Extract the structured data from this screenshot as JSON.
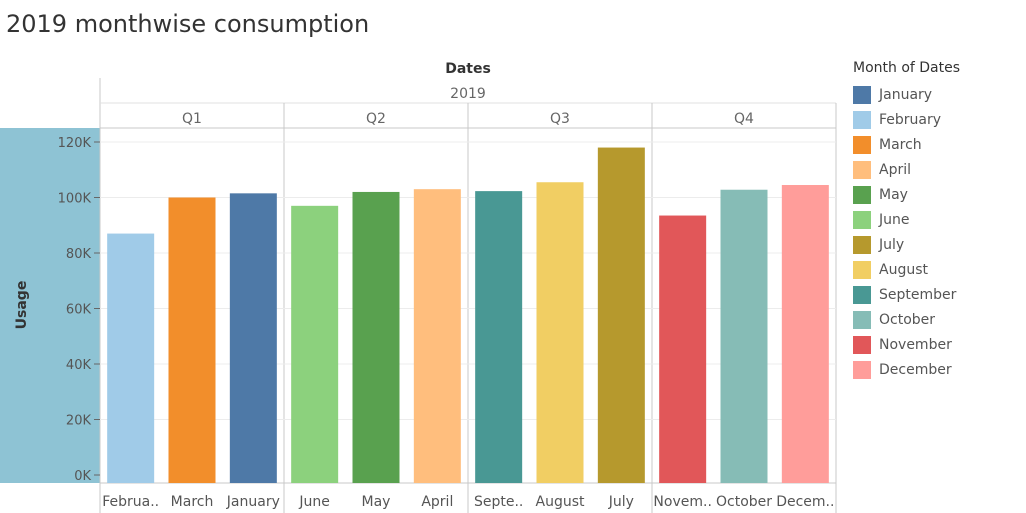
{
  "chart_title": "2019 monthwise consumption",
  "chart_data": {
    "type": "bar",
    "title": "2019 monthwise consumption",
    "xlabel": "Dates",
    "year_header": "2019",
    "ylabel": "Usage",
    "ylim": [
      0,
      125000
    ],
    "y_ticks": [
      0,
      20000,
      40000,
      60000,
      80000,
      100000,
      120000
    ],
    "y_tick_labels": [
      "0K",
      "20K",
      "40K",
      "60K",
      "80K",
      "100K",
      "120K"
    ],
    "grid": true,
    "legend_position": "right",
    "legend_title": "Month of Dates",
    "quarters": [
      {
        "label": "Q1",
        "bars": [
          {
            "month": "February",
            "label": "Februa..",
            "value": 87000
          },
          {
            "month": "March",
            "label": "March",
            "value": 100000
          },
          {
            "month": "January",
            "label": "January",
            "value": 101500
          }
        ]
      },
      {
        "label": "Q2",
        "bars": [
          {
            "month": "June",
            "label": "June",
            "value": 97000
          },
          {
            "month": "May",
            "label": "May",
            "value": 102000
          },
          {
            "month": "April",
            "label": "April",
            "value": 103000
          }
        ]
      },
      {
        "label": "Q3",
        "bars": [
          {
            "month": "September",
            "label": "Septe..",
            "value": 102300
          },
          {
            "month": "August",
            "label": "August",
            "value": 105500
          },
          {
            "month": "July",
            "label": "July",
            "value": 118000
          }
        ]
      },
      {
        "label": "Q4",
        "bars": [
          {
            "month": "November",
            "label": "Novem..",
            "value": 93500
          },
          {
            "month": "October",
            "label": "October",
            "value": 102800
          },
          {
            "month": "December",
            "label": "Decem..",
            "value": 104500
          }
        ]
      }
    ],
    "legend": [
      {
        "name": "January",
        "color": "#4e79a7"
      },
      {
        "name": "February",
        "color": "#a0cbe8"
      },
      {
        "name": "March",
        "color": "#f28e2b"
      },
      {
        "name": "April",
        "color": "#ffbe7d"
      },
      {
        "name": "May",
        "color": "#59a14f"
      },
      {
        "name": "June",
        "color": "#8cd17d"
      },
      {
        "name": "July",
        "color": "#b6992d"
      },
      {
        "name": "August",
        "color": "#f1ce63"
      },
      {
        "name": "September",
        "color": "#499894"
      },
      {
        "name": "October",
        "color": "#86bcb6"
      },
      {
        "name": "November",
        "color": "#e15759"
      },
      {
        "name": "December",
        "color": "#ff9d9a"
      }
    ]
  }
}
